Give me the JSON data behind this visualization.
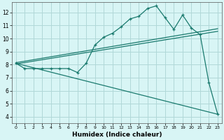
{
  "xlabel": "Humidex (Indice chaleur)",
  "bg_color": "#d8f5f5",
  "grid_color": "#b0d8d8",
  "line_color": "#1a7a6e",
  "xlim": [
    -0.5,
    23.5
  ],
  "ylim": [
    3.5,
    12.8
  ],
  "xticks": [
    0,
    1,
    2,
    3,
    4,
    5,
    6,
    7,
    8,
    9,
    10,
    11,
    12,
    13,
    14,
    15,
    16,
    17,
    18,
    19,
    20,
    21,
    22,
    23
  ],
  "yticks": [
    4,
    5,
    6,
    7,
    8,
    9,
    10,
    11,
    12
  ],
  "main_x": [
    0,
    1,
    2,
    3,
    4,
    5,
    6,
    7,
    8,
    9,
    10,
    11,
    12,
    13,
    14,
    15,
    16,
    17,
    18,
    19,
    20,
    21,
    22,
    23
  ],
  "main_y": [
    8.1,
    7.7,
    7.7,
    7.7,
    7.7,
    7.7,
    7.7,
    7.4,
    8.1,
    9.5,
    10.1,
    10.4,
    10.9,
    11.5,
    11.7,
    12.3,
    12.5,
    11.6,
    10.7,
    11.8,
    10.8,
    10.3,
    6.6,
    4.2
  ],
  "line2_x": [
    0,
    23
  ],
  "line2_y": [
    8.05,
    10.55
  ],
  "line3_x": [
    0,
    23
  ],
  "line3_y": [
    8.15,
    10.75
  ],
  "line4_x": [
    0,
    23
  ],
  "line4_y": [
    8.1,
    4.2
  ]
}
